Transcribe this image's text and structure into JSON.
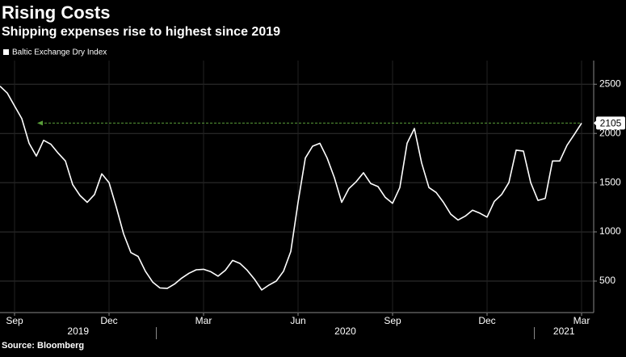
{
  "chart_data": {
    "type": "line",
    "title": "Rising Costs",
    "subtitle": "Shipping expenses rise to highest since 2019",
    "source": "Source: Bloomberg",
    "categories": [
      null,
      null,
      "Sep",
      null,
      null,
      null,
      null,
      null,
      null,
      null,
      null,
      null,
      null,
      null,
      null,
      "Dec",
      null,
      null,
      null,
      null,
      null,
      null,
      null,
      null,
      null,
      null,
      null,
      null,
      "Mar",
      null,
      null,
      null,
      null,
      null,
      null,
      null,
      null,
      null,
      null,
      null,
      null,
      "Jun",
      null,
      null,
      null,
      null,
      null,
      null,
      null,
      null,
      null,
      null,
      null,
      null,
      "Sep",
      null,
      null,
      null,
      null,
      null,
      null,
      null,
      null,
      null,
      null,
      null,
      null,
      "Dec",
      null,
      null,
      null,
      null,
      null,
      null,
      null,
      null,
      null,
      null,
      null,
      null,
      "Mar"
    ],
    "year_labels": [
      "2019",
      "2020",
      "2021"
    ],
    "series": [
      {
        "name": "Baltic Exchange Dry Index",
        "color": "#ffffff",
        "values": [
          2480,
          2410,
          2280,
          2150,
          1900,
          1770,
          1930,
          1890,
          1800,
          1720,
          1480,
          1370,
          1300,
          1380,
          1590,
          1500,
          1250,
          980,
          790,
          750,
          600,
          490,
          430,
          425,
          470,
          530,
          580,
          615,
          620,
          595,
          550,
          610,
          710,
          680,
          610,
          520,
          410,
          460,
          500,
          600,
          800,
          1300,
          1750,
          1870,
          1900,
          1750,
          1550,
          1300,
          1440,
          1510,
          1600,
          1490,
          1460,
          1350,
          1290,
          1450,
          1900,
          2050,
          1700,
          1450,
          1400,
          1300,
          1180,
          1120,
          1160,
          1220,
          1190,
          1150,
          1310,
          1380,
          1500,
          1830,
          1820,
          1500,
          1320,
          1340,
          1720,
          1720,
          1880,
          1990,
          2105
        ]
      }
    ],
    "ylim": [
      180,
      2740
    ],
    "yticks": [
      500,
      1000,
      1500,
      2000,
      2500
    ],
    "grid": true,
    "highlight_color": "#5a9e3a"
  }
}
